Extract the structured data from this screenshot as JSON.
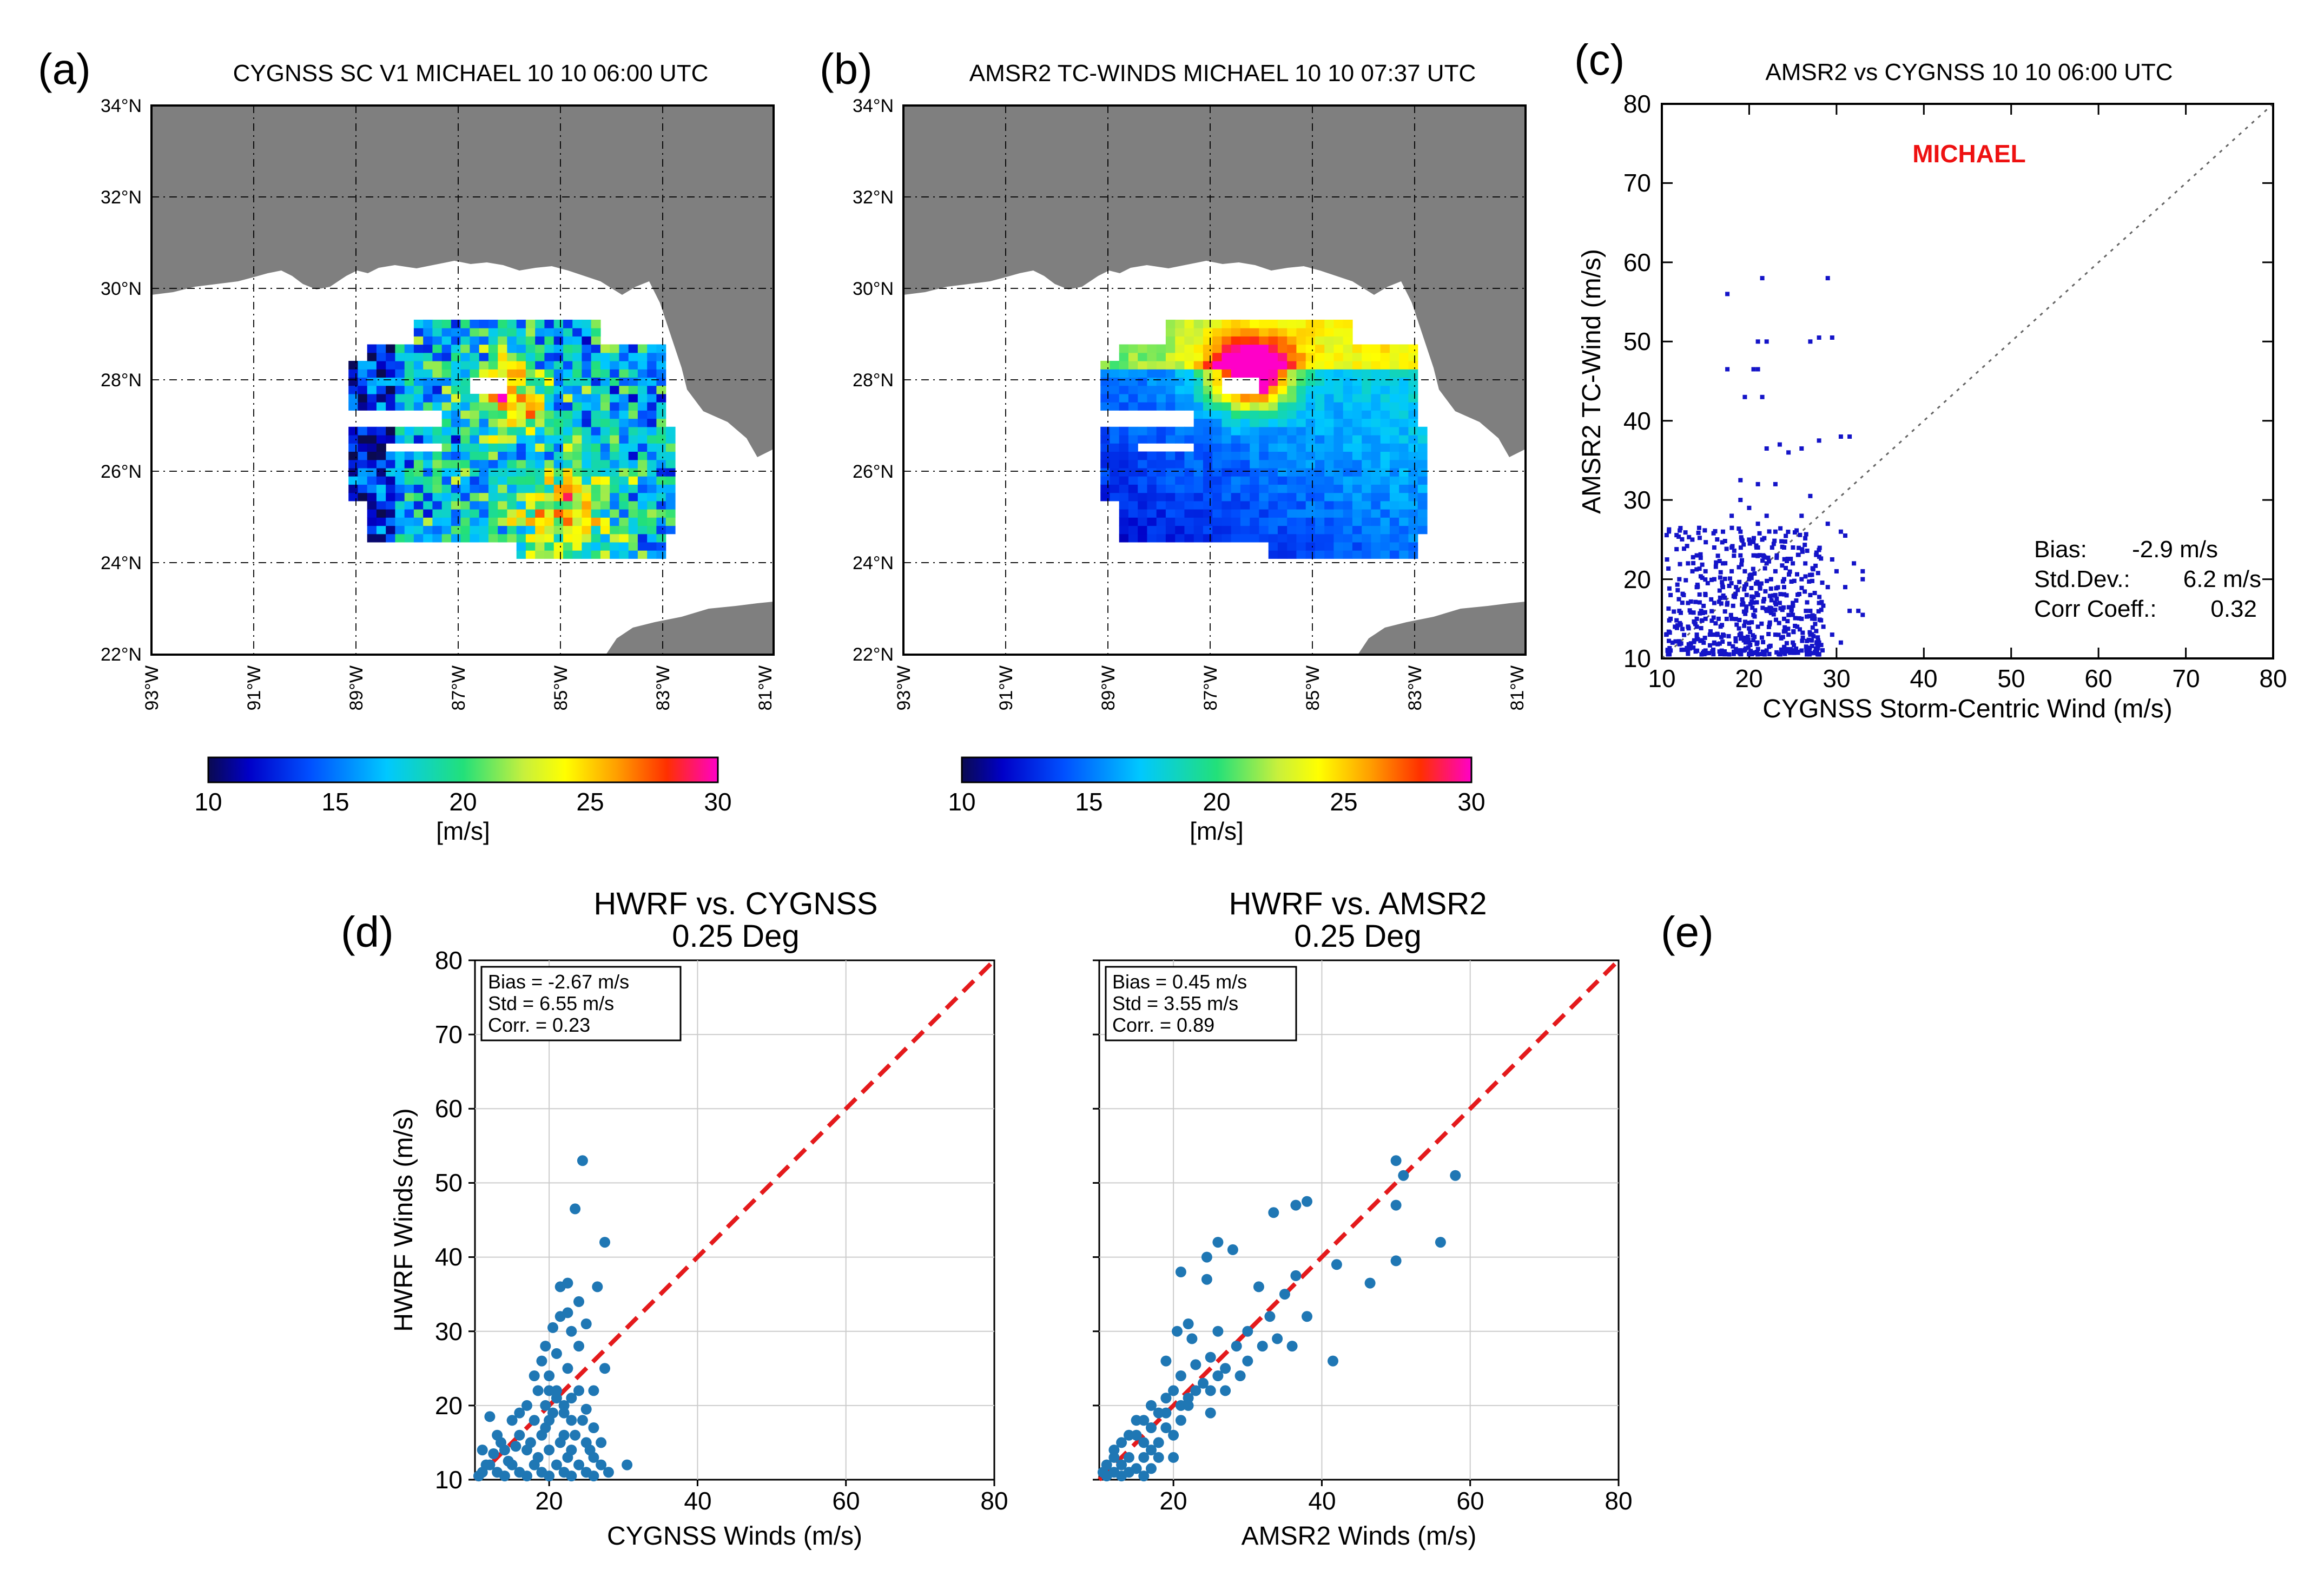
{
  "figure": {
    "panel_labels": [
      "(a)",
      "(b)",
      "(c)",
      "(d)",
      "(e)"
    ],
    "colors": {
      "land": "#7f7f7f",
      "scatter_c": "#1414c8",
      "scatter_de": "#1f77b4",
      "one_to_one": "#e41a1c",
      "grid": "#cccccc"
    }
  },
  "chart_data": [
    {
      "id": "a",
      "type": "heatmap",
      "title": "CYGNSS SC V1   MICHAEL  10 10 06:00 UTC",
      "lat_ticks": [
        "34°N",
        "32°N",
        "30°N",
        "28°N",
        "26°N",
        "24°N",
        "22°N"
      ],
      "lon_ticks": [
        "93°W",
        "91°W",
        "89°W",
        "87°W",
        "85°W",
        "83°W",
        "81°W"
      ],
      "lat_range": [
        22,
        34
      ],
      "lon_range": [
        -93,
        -81
      ],
      "colorbar": {
        "ticks": [
          "10",
          "15",
          "20",
          "25",
          "30"
        ],
        "range": [
          10,
          30
        ],
        "label": "[m/s]"
      },
      "storm": "MICHAEL",
      "wind_field": {
        "min": 10,
        "max": 30,
        "character": "noisy, mostly 15-22 m/s, peaks near 86°W 27-28°N and 84-86°W 25°N"
      }
    },
    {
      "id": "b",
      "type": "heatmap",
      "title": "AMSR2 TC-WINDS   MICHAEL  10 10 07:37 UTC",
      "lat_ticks": [
        "34°N",
        "32°N",
        "30°N",
        "28°N",
        "26°N",
        "24°N",
        "22°N"
      ],
      "lon_ticks": [
        "93°W",
        "91°W",
        "89°W",
        "87°W",
        "85°W",
        "83°W",
        "81°W"
      ],
      "lat_range": [
        22,
        34
      ],
      "lon_range": [
        -93,
        -81
      ],
      "colorbar": {
        "ticks": [
          "10",
          "15",
          "20",
          "25",
          "30"
        ],
        "range": [
          10,
          30
        ],
        "label": "[m/s]"
      },
      "storm": "MICHAEL",
      "wind_field": {
        "min": 10,
        "max": 30,
        "character": "smooth, 10-15 m/s in south-west, 25-30 m/s core near 86.5°W 28°N"
      }
    },
    {
      "id": "c",
      "type": "scatter",
      "title": "AMSR2 vs CYGNSS  10 10 06:00 UTC",
      "xlabel": "CYGNSS Storm-Centric Wind (m/s)",
      "ylabel": "AMSR2 TC-Wind (m/s)",
      "xlim": [
        10,
        80
      ],
      "ylim": [
        10,
        80
      ],
      "xticks": [
        "10",
        "20",
        "30",
        "40",
        "50",
        "60",
        "70",
        "80"
      ],
      "yticks": [
        "10",
        "20",
        "30",
        "40",
        "50",
        "60",
        "70",
        "80"
      ],
      "annotation": "MICHAEL",
      "stats": [
        {
          "label": "Bias:",
          "value": "-2.9 m/s"
        },
        {
          "label": "Std.Dev.:",
          "value": "6.2 m/s"
        },
        {
          "label": "Corr Coeff.:",
          "value": "0.32"
        }
      ],
      "points": [
        [
          17.5,
          56
        ],
        [
          21.5,
          58
        ],
        [
          29,
          58
        ],
        [
          17.5,
          46.5
        ],
        [
          20.5,
          46.5
        ],
        [
          21,
          46.5
        ],
        [
          19.5,
          43
        ],
        [
          21.5,
          43
        ],
        [
          21,
          50
        ],
        [
          22,
          50
        ],
        [
          27,
          50
        ],
        [
          28,
          50.5
        ],
        [
          29.5,
          50.5
        ],
        [
          22,
          36.5
        ],
        [
          23.5,
          37
        ],
        [
          24.5,
          36
        ],
        [
          26,
          36.5
        ],
        [
          28,
          37.5
        ],
        [
          30.5,
          38
        ],
        [
          31.5,
          38
        ],
        [
          19,
          32.5
        ],
        [
          21,
          32
        ],
        [
          23,
          32
        ],
        [
          27,
          30.5
        ],
        [
          26,
          28
        ],
        [
          29,
          27
        ],
        [
          30.5,
          26
        ],
        [
          31,
          25.5
        ],
        [
          32,
          22
        ],
        [
          33,
          21
        ],
        [
          29.5,
          22.5
        ],
        [
          31,
          19
        ],
        [
          32.5,
          16
        ],
        [
          33,
          15.5
        ],
        [
          33,
          20
        ],
        [
          27,
          16
        ],
        [
          25,
          15.5
        ],
        [
          14,
          23
        ],
        [
          13,
          22
        ],
        [
          12,
          20
        ],
        [
          11,
          18
        ],
        [
          10.5,
          13
        ],
        [
          11,
          11
        ],
        [
          12,
          12
        ],
        [
          13,
          14
        ],
        [
          14,
          13
        ],
        [
          15,
          15
        ],
        [
          16,
          17
        ],
        [
          17,
          19
        ],
        [
          18,
          21
        ],
        [
          19,
          23
        ],
        [
          20,
          25
        ],
        [
          21,
          27
        ],
        [
          22,
          28
        ],
        [
          23,
          26
        ],
        [
          24,
          24
        ],
        [
          25,
          22
        ],
        [
          26,
          20
        ],
        [
          27,
          18
        ],
        [
          28,
          17
        ],
        [
          29,
          19
        ],
        [
          30,
          21
        ],
        [
          18,
          15
        ],
        [
          19,
          13
        ],
        [
          20,
          12
        ],
        [
          21,
          14
        ],
        [
          22,
          16
        ],
        [
          23,
          18
        ],
        [
          24,
          20
        ],
        [
          25,
          12
        ],
        [
          26,
          11
        ],
        [
          15,
          11
        ],
        [
          16,
          12
        ],
        [
          17,
          13
        ],
        [
          13,
          17
        ],
        [
          14,
          19
        ],
        [
          15,
          21
        ],
        [
          16,
          24
        ],
        [
          17,
          26
        ],
        [
          18,
          28
        ],
        [
          19,
          30
        ],
        [
          20,
          29
        ],
        [
          21,
          24
        ],
        [
          22,
          22
        ],
        [
          23,
          21
        ],
        [
          24,
          19
        ],
        [
          25,
          17
        ],
        [
          26,
          15
        ],
        [
          27,
          13
        ],
        [
          28,
          12
        ],
        [
          11,
          15
        ],
        [
          12,
          16
        ],
        [
          13,
          11
        ],
        [
          14,
          15
        ],
        [
          15,
          18
        ],
        [
          16,
          20
        ],
        [
          17,
          22
        ],
        [
          18,
          24
        ],
        [
          19,
          26
        ],
        [
          20,
          20
        ],
        [
          21,
          18
        ],
        [
          22,
          11
        ],
        [
          23,
          13
        ],
        [
          24,
          15
        ],
        [
          11.5,
          14
        ],
        [
          12.5,
          18
        ],
        [
          13.5,
          21
        ],
        [
          14.5,
          16
        ],
        [
          15.5,
          13
        ],
        [
          16.5,
          15
        ],
        [
          17.5,
          17
        ],
        [
          18.5,
          19
        ],
        [
          19.5,
          21
        ],
        [
          20.5,
          23
        ],
        [
          21.5,
          25
        ],
        [
          22.5,
          20
        ],
        [
          23.5,
          17
        ],
        [
          24.5,
          13
        ],
        [
          25.5,
          14
        ],
        [
          26.5,
          16
        ],
        [
          27.5,
          15
        ],
        [
          28.5,
          14
        ],
        [
          29.5,
          13
        ],
        [
          30.5,
          12
        ],
        [
          31.5,
          16
        ]
      ]
    },
    {
      "id": "d",
      "type": "scatter",
      "title": "HWRF vs. CYGNSS",
      "subtitle": "0.25 Deg",
      "xlabel": "CYGNSS Winds (m/s)",
      "ylabel": "HWRF Winds (m/s)",
      "xlim": [
        10,
        80
      ],
      "ylim": [
        10,
        80
      ],
      "xticks": [
        "20",
        "40",
        "60",
        "80"
      ],
      "yticks": [
        "10",
        "20",
        "30",
        "40",
        "50",
        "60",
        "70",
        "80"
      ],
      "stats": [
        "Bias = -2.67 m/s",
        "Std = 6.55 m/s",
        "Corr. = 0.23"
      ],
      "points": [
        [
          24.5,
          53
        ],
        [
          23.5,
          46.5
        ],
        [
          27.5,
          42
        ],
        [
          26.5,
          36
        ],
        [
          22.5,
          36.5
        ],
        [
          21.5,
          36
        ],
        [
          24,
          34
        ],
        [
          21.5,
          32
        ],
        [
          22.5,
          32.5
        ],
        [
          20.5,
          30.5
        ],
        [
          23,
          30
        ],
        [
          25,
          31
        ],
        [
          19.5,
          28
        ],
        [
          21,
          27
        ],
        [
          24,
          28
        ],
        [
          27.5,
          25
        ],
        [
          20,
          24
        ],
        [
          22.5,
          25
        ],
        [
          18.5,
          22
        ],
        [
          21,
          22
        ],
        [
          24,
          22
        ],
        [
          26,
          22
        ],
        [
          17,
          20
        ],
        [
          19.5,
          20
        ],
        [
          22,
          20
        ],
        [
          25,
          19.5
        ],
        [
          15,
          18
        ],
        [
          12,
          18.5
        ],
        [
          18,
          18
        ],
        [
          20,
          18
        ],
        [
          23,
          18
        ],
        [
          26,
          17
        ],
        [
          13,
          16
        ],
        [
          16,
          16
        ],
        [
          19,
          16
        ],
        [
          22,
          16
        ],
        [
          25,
          15
        ],
        [
          27,
          15
        ],
        [
          11,
          14
        ],
        [
          14,
          14
        ],
        [
          17,
          14
        ],
        [
          20,
          14
        ],
        [
          23,
          14
        ],
        [
          26,
          13
        ],
        [
          12,
          12
        ],
        [
          15,
          12
        ],
        [
          18,
          12
        ],
        [
          21,
          12
        ],
        [
          24,
          12
        ],
        [
          27,
          12
        ],
        [
          30.5,
          12
        ],
        [
          11,
          11
        ],
        [
          13,
          11
        ],
        [
          16,
          11
        ],
        [
          19,
          11
        ],
        [
          22,
          11
        ],
        [
          25,
          11
        ],
        [
          28,
          11
        ],
        [
          10.5,
          10.5
        ],
        [
          14,
          10.5
        ],
        [
          17,
          10.5
        ],
        [
          20,
          10.5
        ],
        [
          23,
          10.5
        ],
        [
          26,
          10.5
        ],
        [
          16,
          19
        ],
        [
          17.5,
          15
        ],
        [
          18.5,
          13
        ],
        [
          19.5,
          17
        ],
        [
          20.5,
          19
        ],
        [
          21.5,
          15
        ],
        [
          22.5,
          13
        ],
        [
          23.5,
          16
        ],
        [
          24.5,
          18
        ],
        [
          25.5,
          14
        ],
        [
          15.5,
          14.5
        ],
        [
          14.5,
          12.5
        ],
        [
          13.5,
          15
        ],
        [
          12.5,
          13.5
        ],
        [
          11.5,
          12
        ],
        [
          18,
          24
        ],
        [
          19,
          26
        ],
        [
          20,
          22
        ],
        [
          21,
          21
        ],
        [
          22,
          19
        ],
        [
          23,
          21
        ]
      ]
    },
    {
      "id": "e",
      "type": "scatter",
      "title": "HWRF vs. AMSR2",
      "subtitle": "0.25 Deg",
      "xlabel": "AMSR2 Winds (m/s)",
      "ylabel": "",
      "xlim": [
        10,
        80
      ],
      "ylim": [
        10,
        80
      ],
      "xticks": [
        "20",
        "40",
        "60",
        "80"
      ],
      "yticks": [],
      "stats": [
        "Bias = 0.45 m/s",
        "Std = 3.55 m/s",
        "Corr. = 0.89"
      ],
      "points": [
        [
          50,
          53
        ],
        [
          51,
          51
        ],
        [
          58,
          51
        ],
        [
          50,
          47
        ],
        [
          56,
          42
        ],
        [
          50,
          39.5
        ],
        [
          46.5,
          36.5
        ],
        [
          42,
          39
        ],
        [
          41.5,
          26
        ],
        [
          38,
          47.5
        ],
        [
          36.5,
          47
        ],
        [
          33.5,
          46
        ],
        [
          26,
          42
        ],
        [
          24.5,
          40
        ],
        [
          28,
          41
        ],
        [
          21,
          38
        ],
        [
          24.5,
          37
        ],
        [
          31.5,
          36
        ],
        [
          36.5,
          37.5
        ],
        [
          35,
          35
        ],
        [
          33,
          32
        ],
        [
          38,
          32
        ],
        [
          30,
          30
        ],
        [
          26,
          30
        ],
        [
          22,
          31
        ],
        [
          20.5,
          30
        ],
        [
          22.5,
          29
        ],
        [
          28.5,
          28
        ],
        [
          34,
          29
        ],
        [
          36,
          28
        ],
        [
          25,
          26.5
        ],
        [
          23,
          25.5
        ],
        [
          29,
          24
        ],
        [
          19,
          26
        ],
        [
          21,
          24
        ],
        [
          25,
          22
        ],
        [
          20,
          22
        ],
        [
          17,
          20
        ],
        [
          19,
          19
        ],
        [
          22,
          20
        ],
        [
          25,
          19
        ],
        [
          15,
          18
        ],
        [
          17,
          17
        ],
        [
          19,
          17
        ],
        [
          21,
          18
        ],
        [
          14,
          16
        ],
        [
          16,
          15
        ],
        [
          18,
          15
        ],
        [
          20,
          16
        ],
        [
          12,
          14
        ],
        [
          14,
          13
        ],
        [
          16,
          13
        ],
        [
          18,
          13
        ],
        [
          20,
          13
        ],
        [
          11,
          12
        ],
        [
          13,
          12
        ],
        [
          15,
          11.5
        ],
        [
          17,
          11.5
        ],
        [
          10.5,
          11
        ],
        [
          12,
          11
        ],
        [
          14,
          11
        ],
        [
          16,
          10.5
        ],
        [
          11,
          10.5
        ],
        [
          13,
          10.5
        ],
        [
          30,
          26
        ],
        [
          27,
          25
        ],
        [
          32,
          28
        ],
        [
          24,
          23
        ],
        [
          22,
          21
        ],
        [
          26,
          24
        ],
        [
          18,
          19
        ],
        [
          16,
          18
        ],
        [
          13,
          15
        ],
        [
          15,
          16
        ],
        [
          12,
          13
        ],
        [
          17,
          14
        ],
        [
          19,
          21
        ],
        [
          23,
          22
        ],
        [
          21,
          20
        ],
        [
          27,
          22
        ]
      ]
    }
  ]
}
